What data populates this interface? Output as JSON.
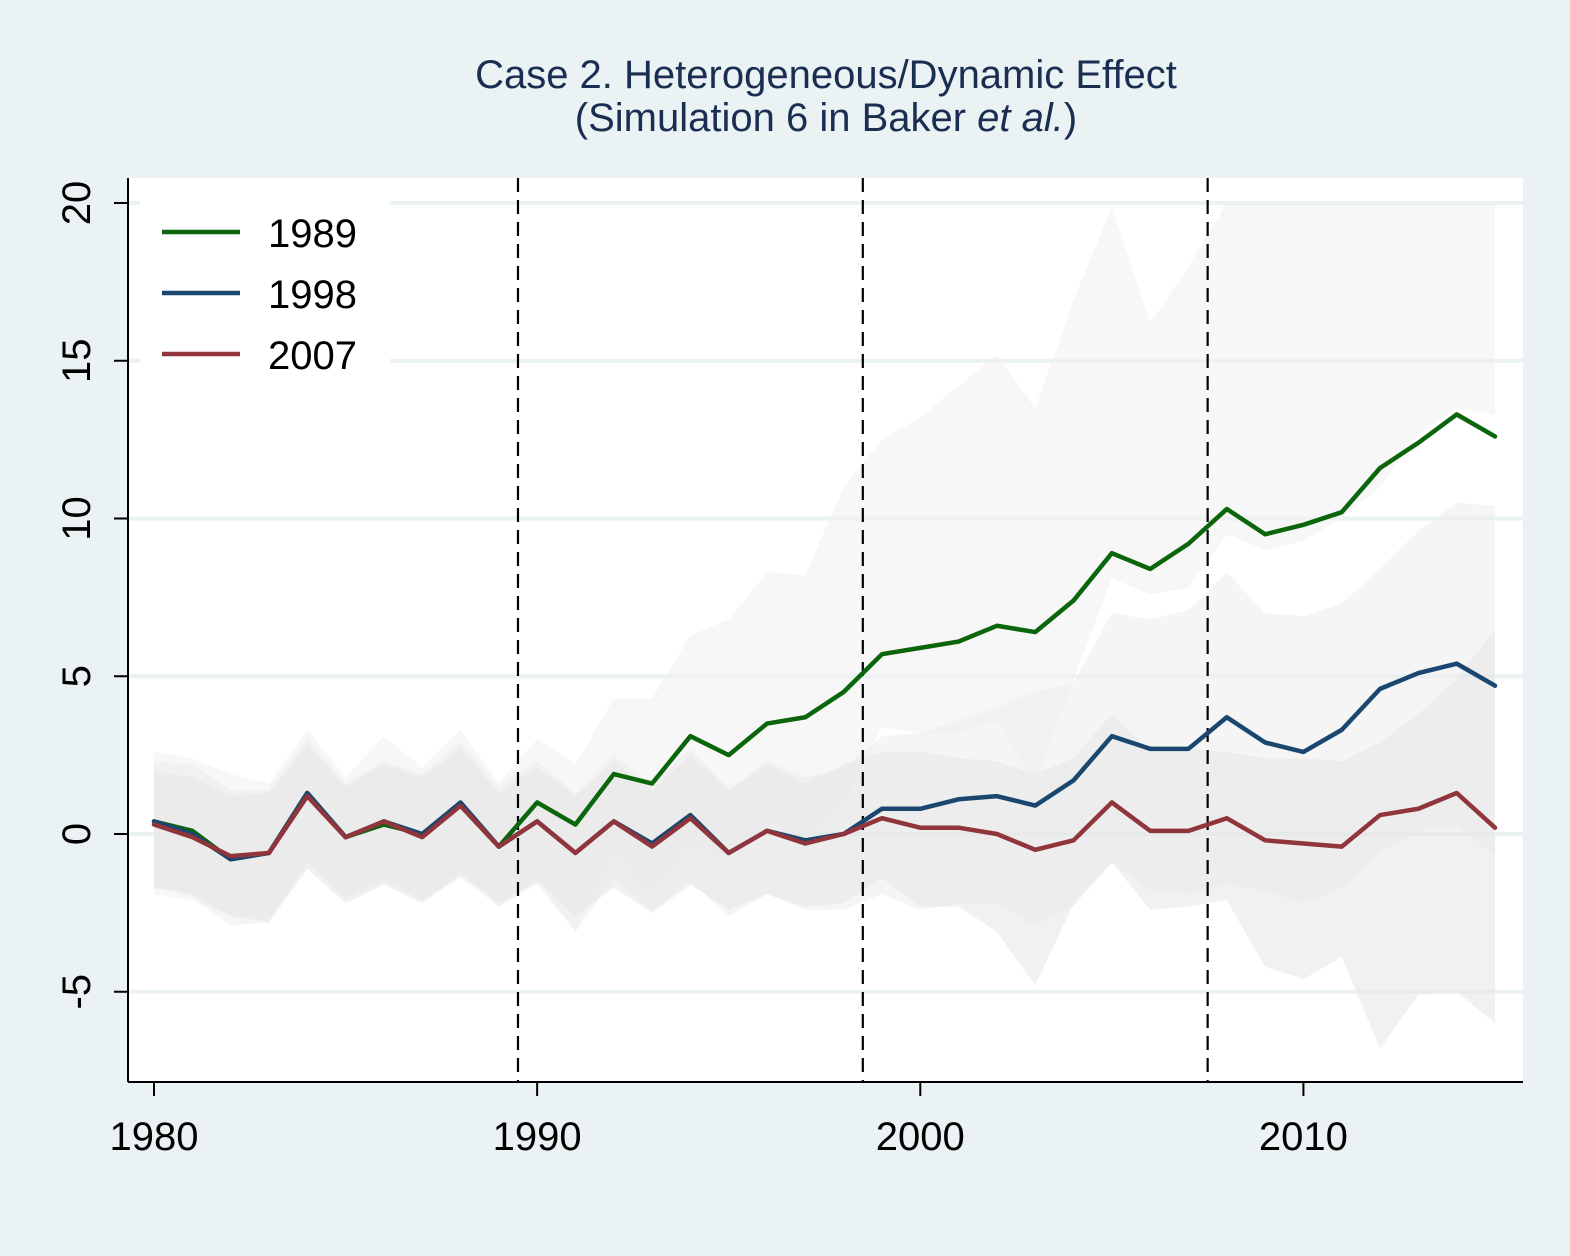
{
  "chart_data": {
    "type": "line",
    "title_line1": "Case 2. Heterogeneous/Dynamic Effect",
    "title_line2_prefix": "(Simulation 6 in Baker ",
    "title_line2_italic": "et al.",
    "title_line2_suffix": ")",
    "xlabel": "",
    "ylabel": "",
    "xlim": [
      1979.4,
      2015.7
    ],
    "ylim": [
      -7.8,
      20.8
    ],
    "xticks": [
      1980,
      1990,
      2000,
      2010
    ],
    "yticks": [
      -5,
      0,
      5,
      10,
      15,
      20
    ],
    "xtick_labels": [
      "1980",
      "1990",
      "2000",
      "2010"
    ],
    "ytick_labels": [
      "-5",
      "0",
      "5",
      "10",
      "15",
      "20"
    ],
    "grid": "horizontal",
    "legend_position": "top-left",
    "vlines": [
      1989.5,
      1998.5,
      2007.5
    ],
    "x": [
      1980,
      1981,
      1982,
      1983,
      1984,
      1985,
      1986,
      1987,
      1988,
      1989,
      1990,
      1991,
      1992,
      1993,
      1994,
      1995,
      1996,
      1997,
      1998,
      1999,
      2000,
      2001,
      2002,
      2003,
      2004,
      2005,
      2006,
      2007,
      2008,
      2009,
      2010,
      2011,
      2012,
      2013,
      2014,
      2015
    ],
    "series": [
      {
        "name": "1989",
        "color": "#0b650b",
        "values": [
          0.4,
          0.1,
          -0.8,
          -0.6,
          1.3,
          -0.1,
          0.3,
          0.0,
          0.9,
          -0.4,
          1.0,
          0.3,
          1.9,
          1.6,
          3.1,
          2.5,
          3.5,
          3.7,
          4.5,
          5.7,
          5.9,
          6.1,
          6.6,
          6.4,
          7.4,
          8.9,
          8.4,
          9.2,
          10.3,
          9.5,
          9.8,
          10.2,
          11.6,
          12.4,
          13.3,
          12.6
        ],
        "band_upper": [
          2.6,
          2.4,
          1.9,
          1.6,
          3.3,
          1.8,
          3.1,
          2.1,
          3.3,
          1.6,
          3.0,
          2.2,
          4.3,
          4.3,
          6.3,
          6.8,
          8.3,
          8.2,
          11.0,
          12.5,
          13.2,
          14.2,
          15.2,
          13.5,
          16.9,
          19.9,
          16.2,
          18.0,
          20.0,
          20.0,
          20.0,
          20.0,
          20.0,
          20.0,
          20.0,
          20.0
        ],
        "band_lower": [
          -1.9,
          -2.1,
          -2.6,
          -2.7,
          -0.9,
          -2.1,
          -1.4,
          -2.1,
          -1.4,
          -2.3,
          -1.4,
          -3.1,
          -0.6,
          -1.9,
          -0.3,
          -0.8,
          0.4,
          -0.1,
          0.9,
          3.4,
          3.2,
          3.2,
          3.6,
          1.6,
          4.9,
          8.1,
          7.6,
          7.8,
          9.5,
          9.0,
          9.3,
          10.0,
          11.0,
          12.7,
          13.5,
          13.3
        ]
      },
      {
        "name": "1998",
        "color": "#1a476f",
        "values": [
          0.4,
          0.0,
          -0.8,
          -0.6,
          1.3,
          -0.1,
          0.4,
          0.0,
          1.0,
          -0.4,
          0.4,
          -0.6,
          0.4,
          -0.3,
          0.6,
          -0.6,
          0.1,
          -0.2,
          0.0,
          0.8,
          0.8,
          1.1,
          1.2,
          0.9,
          1.7,
          3.1,
          2.7,
          2.7,
          3.7,
          2.9,
          2.6,
          3.3,
          4.6,
          5.1,
          5.4,
          4.7
        ],
        "band_upper": [
          2.3,
          2.2,
          1.4,
          1.4,
          3.0,
          1.6,
          2.3,
          1.9,
          2.9,
          1.5,
          2.3,
          1.3,
          2.5,
          1.6,
          2.7,
          1.4,
          2.3,
          1.8,
          2.1,
          3.1,
          3.2,
          3.6,
          4.0,
          4.5,
          4.8,
          7.0,
          6.8,
          7.1,
          8.3,
          7.0,
          6.9,
          7.3,
          8.4,
          9.6,
          10.5,
          10.4
        ],
        "band_lower": [
          -1.6,
          -2.0,
          -2.9,
          -2.8,
          -0.9,
          -2.0,
          -1.5,
          -2.1,
          -1.2,
          -2.3,
          -1.6,
          -3.1,
          -1.4,
          -2.4,
          -1.5,
          -2.6,
          -1.9,
          -2.4,
          -2.4,
          -1.9,
          -2.4,
          -2.2,
          -2.2,
          -2.9,
          -2.3,
          -0.9,
          -1.8,
          -1.9,
          -1.6,
          -1.8,
          -2.2,
          -1.7,
          -0.6,
          0.1,
          0.3,
          -0.7
        ]
      },
      {
        "name": "2007",
        "color": "#90353b",
        "values": [
          0.3,
          -0.1,
          -0.7,
          -0.6,
          1.2,
          -0.1,
          0.4,
          -0.1,
          0.9,
          -0.4,
          0.4,
          -0.6,
          0.4,
          -0.4,
          0.5,
          -0.6,
          0.1,
          -0.3,
          0.0,
          0.5,
          0.2,
          0.2,
          0.0,
          -0.5,
          -0.2,
          1.0,
          0.1,
          0.1,
          0.5,
          -0.2,
          -0.3,
          -0.4,
          0.6,
          0.8,
          1.3,
          0.2
        ],
        "band_upper": [
          2.0,
          1.8,
          1.2,
          1.3,
          2.8,
          1.5,
          2.2,
          1.8,
          2.7,
          1.3,
          2.1,
          1.2,
          2.3,
          1.4,
          2.5,
          1.4,
          2.2,
          1.6,
          2.2,
          2.6,
          2.6,
          2.4,
          2.3,
          1.9,
          2.4,
          3.8,
          2.6,
          2.7,
          2.6,
          2.4,
          2.4,
          2.3,
          2.9,
          3.8,
          4.9,
          6.5
        ],
        "band_lower": [
          -1.7,
          -1.9,
          -2.6,
          -2.8,
          -1.1,
          -2.2,
          -1.6,
          -2.2,
          -1.3,
          -2.2,
          -1.5,
          -2.6,
          -1.7,
          -2.5,
          -1.6,
          -2.4,
          -1.9,
          -2.3,
          -2.2,
          -1.4,
          -2.3,
          -2.3,
          -3.1,
          -4.8,
          -2.2,
          -0.9,
          -2.4,
          -2.3,
          -2.1,
          -4.2,
          -4.6,
          -3.9,
          -6.8,
          -5.1,
          -5.0,
          -6.0
        ]
      }
    ]
  }
}
